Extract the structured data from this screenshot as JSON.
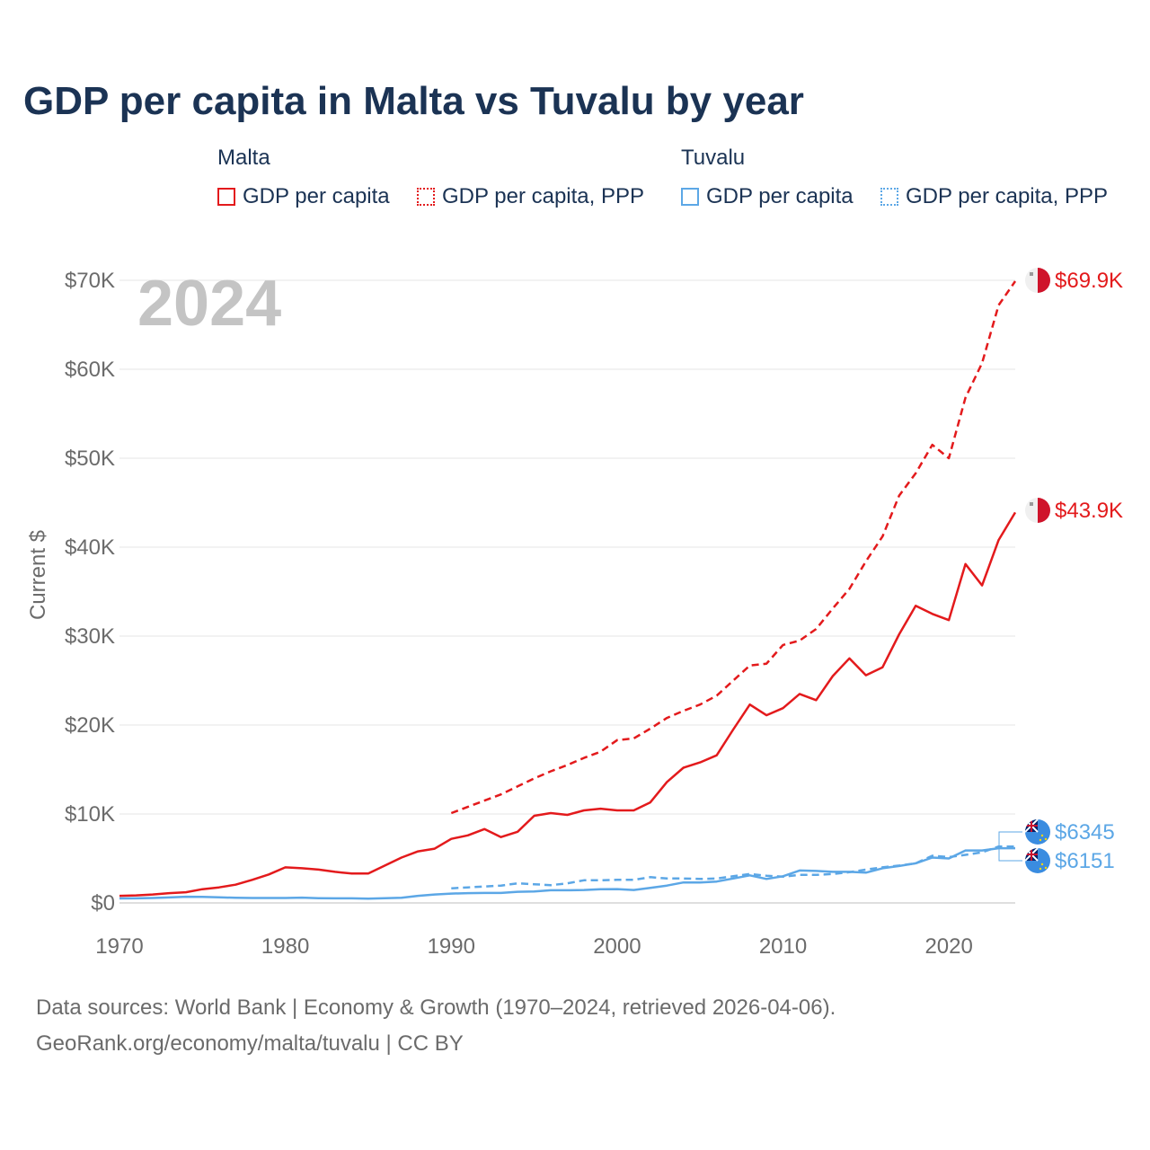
{
  "title": "GDP per capita in Malta vs Tuvalu by year",
  "legend": {
    "groups": [
      {
        "name": "Malta",
        "items": [
          "GDP per capita",
          "GDP per capita, PPP"
        ],
        "color": "#e31a1c"
      },
      {
        "name": "Tuvalu",
        "items": [
          "GDP per capita",
          "GDP per capita, PPP"
        ],
        "color": "#5ca7e6"
      }
    ]
  },
  "year_label": "2024",
  "footer": {
    "line1": "Data sources: World Bank | Economy & Growth (1970–2024, retrieved 2026-04-06).",
    "line2": "GeoRank.org/economy/malta/tuvalu | CC BY"
  },
  "end_labels": {
    "malta_ppp": "$69.9K",
    "malta_gdp": "$43.9K",
    "tuvalu_ppp": "$6345",
    "tuvalu_gdp": "$6151"
  },
  "chart_data": {
    "type": "line",
    "title": "GDP per capita in Malta vs Tuvalu by year",
    "xlabel": "",
    "ylabel": "Current $",
    "xlim": [
      1970,
      2024
    ],
    "ylim": [
      0,
      70000
    ],
    "x_ticks": [
      1970,
      1980,
      1990,
      2000,
      2010,
      2020
    ],
    "x_tick_labels": [
      "1970",
      "1980",
      "1990",
      "2000",
      "2010",
      "2020"
    ],
    "y_ticks": [
      0,
      10000,
      20000,
      30000,
      40000,
      50000,
      60000,
      70000
    ],
    "y_tick_labels": [
      "$0",
      "$10K",
      "$20K",
      "$30K",
      "$40K",
      "$50K",
      "$60K",
      "$70K"
    ],
    "grid": "horizontal",
    "series": [
      {
        "name": "Malta — GDP per capita",
        "country": "Malta",
        "color": "#e31a1c",
        "dash": "solid",
        "x": [
          1970,
          1971,
          1972,
          1973,
          1974,
          1975,
          1976,
          1977,
          1978,
          1979,
          1980,
          1981,
          1982,
          1983,
          1984,
          1985,
          1986,
          1987,
          1988,
          1989,
          1990,
          1991,
          1992,
          1993,
          1994,
          1995,
          1996,
          1997,
          1998,
          1999,
          2000,
          2001,
          2002,
          2003,
          2004,
          2005,
          2006,
          2007,
          2008,
          2009,
          2010,
          2011,
          2012,
          2013,
          2014,
          2015,
          2016,
          2017,
          2018,
          2019,
          2020,
          2021,
          2022,
          2023,
          2024
        ],
        "values": [
          800,
          850,
          950,
          1100,
          1200,
          1550,
          1750,
          2050,
          2600,
          3200,
          4000,
          3900,
          3750,
          3500,
          3300,
          3300,
          4200,
          5100,
          5800,
          6100,
          7200,
          7600,
          8300,
          7400,
          8000,
          9800,
          10100,
          9900,
          10400,
          10600,
          10400,
          10400,
          11300,
          13600,
          15200,
          15800,
          16600,
          19500,
          22300,
          21100,
          21900,
          23500,
          22800,
          25500,
          27500,
          25600,
          26500,
          30200,
          33400,
          32500,
          31800,
          38100,
          35700,
          40800,
          43900
        ]
      },
      {
        "name": "Malta — GDP per capita, PPP",
        "country": "Malta",
        "color": "#e31a1c",
        "dash": "dashed",
        "x": [
          1990,
          1991,
          1992,
          1993,
          1994,
          1995,
          1996,
          1997,
          1998,
          1999,
          2000,
          2001,
          2002,
          2003,
          2004,
          2005,
          2006,
          2007,
          2008,
          2009,
          2010,
          2011,
          2012,
          2013,
          2014,
          2015,
          2016,
          2017,
          2018,
          2019,
          2020,
          2021,
          2022,
          2023,
          2024
        ],
        "values": [
          10100,
          10800,
          11500,
          12200,
          13100,
          14000,
          14800,
          15500,
          16300,
          17000,
          18300,
          18500,
          19600,
          20800,
          21600,
          22300,
          23300,
          25000,
          26700,
          26900,
          29000,
          29500,
          30800,
          33100,
          35300,
          38400,
          41200,
          45800,
          48300,
          51500,
          50000,
          56800,
          60700,
          67200,
          69900
        ]
      },
      {
        "name": "Tuvalu — GDP per capita",
        "country": "Tuvalu",
        "color": "#5ca7e6",
        "dash": "solid",
        "x": [
          1970,
          1971,
          1972,
          1973,
          1974,
          1975,
          1976,
          1977,
          1978,
          1979,
          1980,
          1981,
          1982,
          1983,
          1984,
          1985,
          1986,
          1987,
          1988,
          1989,
          1990,
          1991,
          1992,
          1993,
          1994,
          1995,
          1996,
          1997,
          1998,
          1999,
          2000,
          2001,
          2002,
          2003,
          2004,
          2005,
          2006,
          2007,
          2008,
          2009,
          2010,
          2011,
          2012,
          2013,
          2014,
          2015,
          2016,
          2017,
          2018,
          2019,
          2020,
          2021,
          2022,
          2023,
          2024
        ],
        "values": [
          500,
          520,
          560,
          620,
          700,
          680,
          640,
          580,
          560,
          560,
          560,
          600,
          540,
          520,
          520,
          480,
          540,
          580,
          800,
          950,
          1050,
          1100,
          1120,
          1120,
          1250,
          1280,
          1420,
          1420,
          1450,
          1550,
          1560,
          1450,
          1700,
          1950,
          2300,
          2300,
          2400,
          2750,
          3100,
          2700,
          3000,
          3650,
          3600,
          3500,
          3500,
          3400,
          3900,
          4150,
          4450,
          5100,
          5000,
          5900,
          5900,
          6151,
          6151
        ]
      },
      {
        "name": "Tuvalu — GDP per capita, PPP",
        "country": "Tuvalu",
        "color": "#5ca7e6",
        "dash": "dashed",
        "x": [
          1990,
          1991,
          1992,
          1993,
          1994,
          1995,
          1996,
          1997,
          1998,
          1999,
          2000,
          2001,
          2002,
          2003,
          2004,
          2005,
          2006,
          2007,
          2008,
          2009,
          2010,
          2011,
          2012,
          2013,
          2014,
          2015,
          2016,
          2017,
          2018,
          2019,
          2020,
          2021,
          2022,
          2023,
          2024
        ],
        "values": [
          1650,
          1750,
          1850,
          1950,
          2200,
          2100,
          2000,
          2200,
          2550,
          2550,
          2600,
          2600,
          2900,
          2750,
          2750,
          2700,
          2750,
          3000,
          3250,
          3050,
          2950,
          3150,
          3150,
          3250,
          3450,
          3750,
          4000,
          4200,
          4450,
          5300,
          5150,
          5400,
          5700,
          6345,
          6345
        ]
      }
    ]
  }
}
